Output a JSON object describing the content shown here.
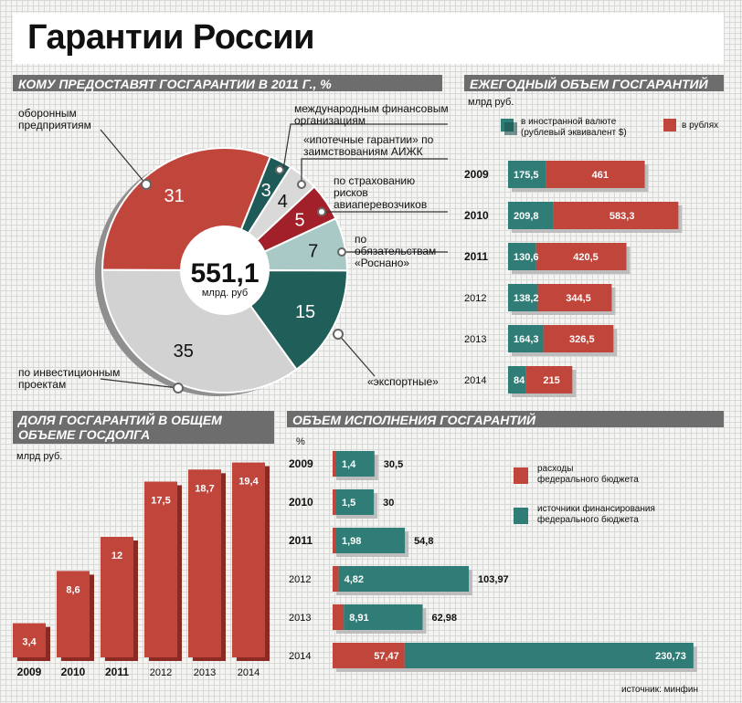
{
  "title": "Гарантии России",
  "source": "источник: минфин",
  "colors": {
    "red": "#c0453b",
    "red_dark": "#8a2a23",
    "teal": "#2f7d76",
    "teal_dark": "#1d524d",
    "grey": "#d6d6d6",
    "lightteal": "#a9c9c6",
    "darkred": "#a1202a",
    "darkteal": "#1e5a58"
  },
  "chart_data": [
    {
      "type": "pie",
      "title": "КОМУ ПРЕДОСТАВЯТ ГОСГАРАНТИИ В 2011 Г., %",
      "center_value": "551,1",
      "center_unit": "млрд. руб",
      "slices": [
        {
          "value": 3,
          "label": "международным финансовым организациям",
          "color": "#1e5a58"
        },
        {
          "value": 4,
          "label": "«ипотечные гарантии» по заимствованиям АИЖК",
          "color": "#d9d9d9"
        },
        {
          "value": 5,
          "label": "по страхованию рисков авиаперевозчиков",
          "color": "#a1202a"
        },
        {
          "value": 7,
          "label": "по обязательствам «Роснано»",
          "color": "#a9c9c6"
        },
        {
          "value": 15,
          "label": "«экспортные»",
          "color": "#1f5e59"
        },
        {
          "value": 35,
          "label": "по инвестиционным проектам",
          "color": "#d2d2d2"
        },
        {
          "value": 31,
          "label": "оборонным предприятиям",
          "color": "#c0453b"
        }
      ]
    },
    {
      "type": "bar",
      "orientation": "horizontal",
      "stacked": true,
      "title": "ЕЖЕГОДНЫЙ ОБЪЕМ ГОСГАРАНТИЙ",
      "unit": "млрд руб.",
      "categories": [
        "2009",
        "2010",
        "2011",
        "2012",
        "2013",
        "2014"
      ],
      "series": [
        {
          "name": "в иностранной валюте (рублевый эквивалент $)",
          "values": [
            175.5,
            209.8,
            130.6,
            138.2,
            164.3,
            84
          ],
          "labels": [
            "175,5",
            "209,8",
            "130,6",
            "138,2",
            "164,3",
            "84"
          ]
        },
        {
          "name": "в рублях",
          "values": [
            461,
            583.3,
            420.5,
            344.5,
            326.5,
            215
          ],
          "labels": [
            "461",
            "583,3",
            "420,5",
            "344,5",
            "326,5",
            "215"
          ]
        }
      ]
    },
    {
      "type": "bar",
      "title": "ДОЛЯ ГОСГАРАНТИЙ В ОБЩЕМ ОБЪЕМЕ ГОСДОЛГА",
      "unit": "млрд руб.",
      "categories": [
        "2009",
        "2010",
        "2011",
        "2012",
        "2013",
        "2014"
      ],
      "values": [
        3.4,
        8.6,
        12,
        17.5,
        18.7,
        19.4
      ],
      "labels": [
        "3,4",
        "8,6",
        "12",
        "17,5",
        "18,7",
        "19,4"
      ]
    },
    {
      "type": "bar",
      "orientation": "horizontal",
      "stacked": true,
      "title": "ОБЪЕМ ИСПОЛНЕНИЯ ГОСГАРАНТИЙ",
      "unit": "%",
      "categories": [
        "2009",
        "2010",
        "2011",
        "2012",
        "2013",
        "2014"
      ],
      "series": [
        {
          "name": "расходы федерального бюджета",
          "values": [
            1.4,
            1.5,
            1.98,
            4.82,
            8.91,
            57.47
          ],
          "labels": [
            "1,4",
            "1,5",
            "1,98",
            "4,82",
            "8,91",
            "57,47"
          ]
        },
        {
          "name": "источники финансирования федерального бюджета",
          "values": [
            30.5,
            30,
            54.8,
            103.97,
            62.98,
            230.73
          ],
          "labels": [
            "30,5",
            "30",
            "54,8",
            "103,97",
            "62,98",
            "230,73"
          ]
        }
      ]
    }
  ]
}
